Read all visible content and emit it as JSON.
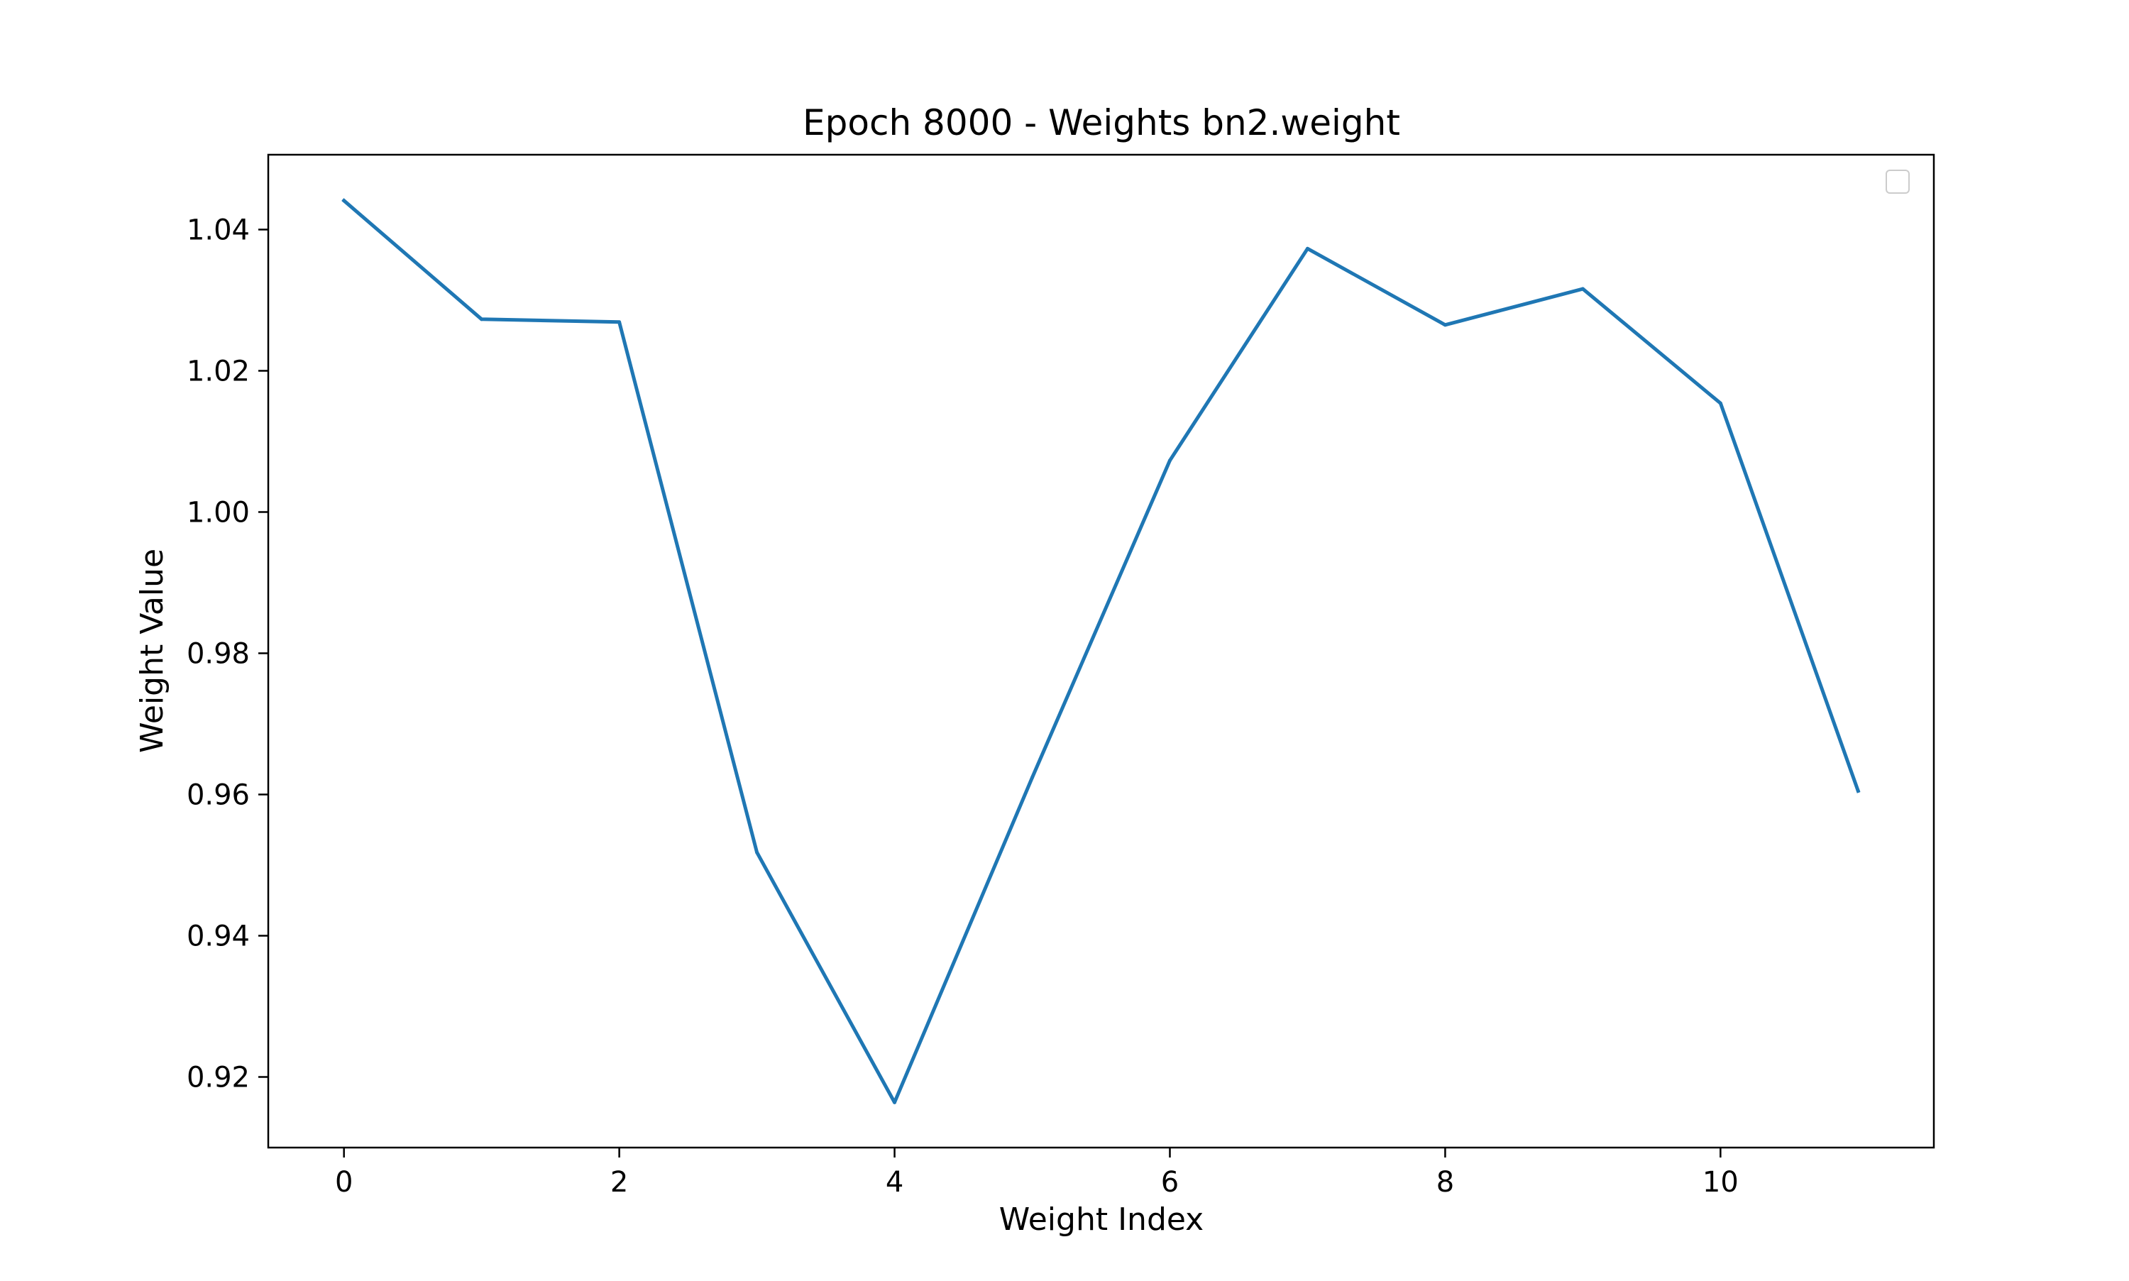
{
  "chart_data": {
    "type": "line",
    "title": "Epoch 8000 - Weights bn2.weight",
    "xlabel": "Weight Index",
    "ylabel": "Weight Value",
    "x": [
      0,
      1,
      2,
      3,
      4,
      5,
      6,
      7,
      8,
      9,
      10,
      11
    ],
    "series": [
      {
        "values": [
          1.0441,
          1.0273,
          1.0269,
          0.9518,
          0.9164,
          0.9624,
          1.0073,
          1.0373,
          1.0265,
          1.0316,
          1.0154,
          0.9605
        ]
      }
    ],
    "xlim": [
      -0.55,
      11.55
    ],
    "ylim": [
      0.91,
      1.0506
    ],
    "xticks": [
      0,
      2,
      4,
      6,
      8,
      10
    ],
    "yticks": [
      0.92,
      0.94,
      0.96,
      0.98,
      1.0,
      1.02,
      1.04
    ],
    "xtick_labels": [
      "0",
      "2",
      "4",
      "6",
      "8",
      "10"
    ],
    "ytick_labels": [
      "0.92",
      "0.94",
      "0.96",
      "0.98",
      "1.00",
      "1.02",
      "1.04"
    ],
    "grid": false,
    "legend": "upper right (empty)",
    "colors": {
      "line": "#1f77b4",
      "axes": "#000000",
      "background": "#ffffff"
    }
  }
}
